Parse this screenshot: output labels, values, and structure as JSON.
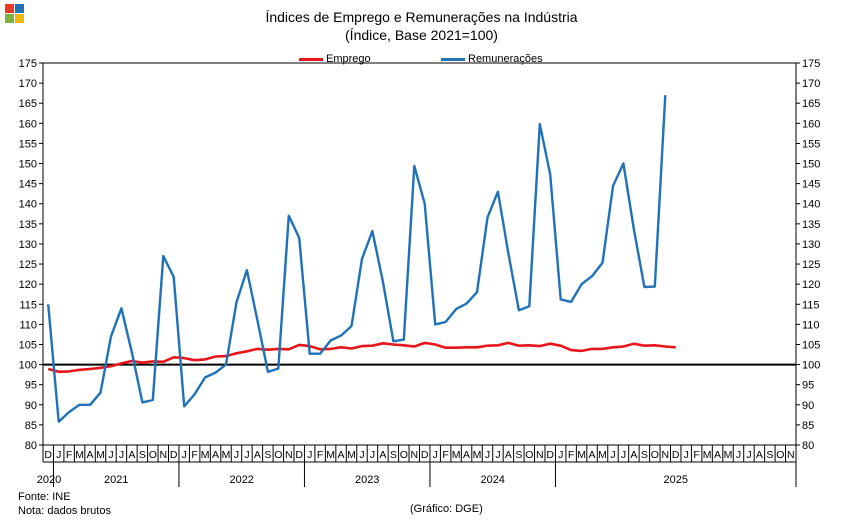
{
  "header": {
    "title": "Índices de Emprego e Remunerações na Indústria",
    "subtitle": "(Índice, Base 2021=100)"
  },
  "footer": {
    "source": "Fonte: INE",
    "note": "Nota: dados brutos",
    "credit": "(Gráfico: DGE)"
  },
  "colors": {
    "emprego": "#e8151b",
    "remuneracoes": "#1f72b8",
    "reference": "#000000",
    "logo": [
      "#e83a26",
      "#1f72b8",
      "#7cb342",
      "#f5b800"
    ]
  },
  "chart_data": {
    "type": "line",
    "ylim": [
      80,
      175
    ],
    "yticks": [
      80,
      85,
      90,
      95,
      100,
      105,
      110,
      115,
      120,
      125,
      130,
      135,
      140,
      145,
      150,
      155,
      160,
      165,
      170,
      175
    ],
    "reference_line": 100,
    "x_month_labels": [
      "D",
      "J",
      "F",
      "M",
      "A",
      "M",
      "J",
      "J",
      "A",
      "S",
      "O",
      "N",
      "D",
      "J",
      "F",
      "M",
      "A",
      "M",
      "J",
      "J",
      "A",
      "S",
      "O",
      "N",
      "D",
      "J",
      "F",
      "M",
      "A",
      "M",
      "J",
      "J",
      "A",
      "S",
      "O",
      "N",
      "D",
      "J",
      "F",
      "M",
      "A",
      "M",
      "J",
      "J",
      "A",
      "S",
      "O",
      "N",
      "D",
      "J",
      "F",
      "M",
      "A",
      "M",
      "J",
      "J",
      "A",
      "S",
      "O",
      "N",
      "D",
      "J",
      "F",
      "M",
      "A",
      "M",
      "J",
      "J",
      "A",
      "S",
      "O",
      "N"
    ],
    "x_year_labels": [
      "2020",
      "2021",
      "2022",
      "2023",
      "2024",
      "2025"
    ],
    "series": [
      {
        "name": "Emprego",
        "values": [
          98.9,
          98.2,
          98.3,
          98.7,
          98.9,
          99.2,
          99.6,
          100.3,
          100.9,
          100.5,
          100.8,
          100.7,
          101.8,
          101.6,
          101.1,
          101.3,
          102.0,
          102.1,
          102.8,
          103.3,
          103.9,
          103.7,
          103.9,
          103.8,
          104.9,
          104.6,
          103.8,
          103.9,
          104.3,
          104.0,
          104.6,
          104.7,
          105.3,
          105.0,
          104.8,
          104.5,
          105.4,
          105.0,
          104.2,
          104.2,
          104.3,
          104.3,
          104.7,
          104.8,
          105.4,
          104.7,
          104.8,
          104.6,
          105.2,
          104.7,
          103.6,
          103.4,
          103.9,
          103.9,
          104.3,
          104.5,
          105.2,
          104.7,
          104.8,
          104.5,
          104.3
        ]
      },
      {
        "name": "Remunerações",
        "values": [
          115,
          85.8,
          88.2,
          90,
          90,
          93,
          107,
          114,
          103,
          90.6,
          91.2,
          127,
          121.8,
          89.6,
          92.6,
          96.8,
          98,
          100,
          115.5,
          123.5,
          111,
          98.2,
          99,
          137,
          131.5,
          102.7,
          102.7,
          106,
          107.2,
          109.6,
          126.3,
          133.2,
          120.6,
          105.8,
          106.2,
          149.4,
          140,
          110,
          110.6,
          113.8,
          115.2,
          118,
          136.6,
          143,
          127.6,
          113.5,
          114.5,
          159.8,
          147.3,
          116.2,
          115.6,
          120,
          122,
          125.3,
          144.4,
          150,
          133.6,
          119.3,
          119.4,
          167
        ]
      }
    ]
  }
}
